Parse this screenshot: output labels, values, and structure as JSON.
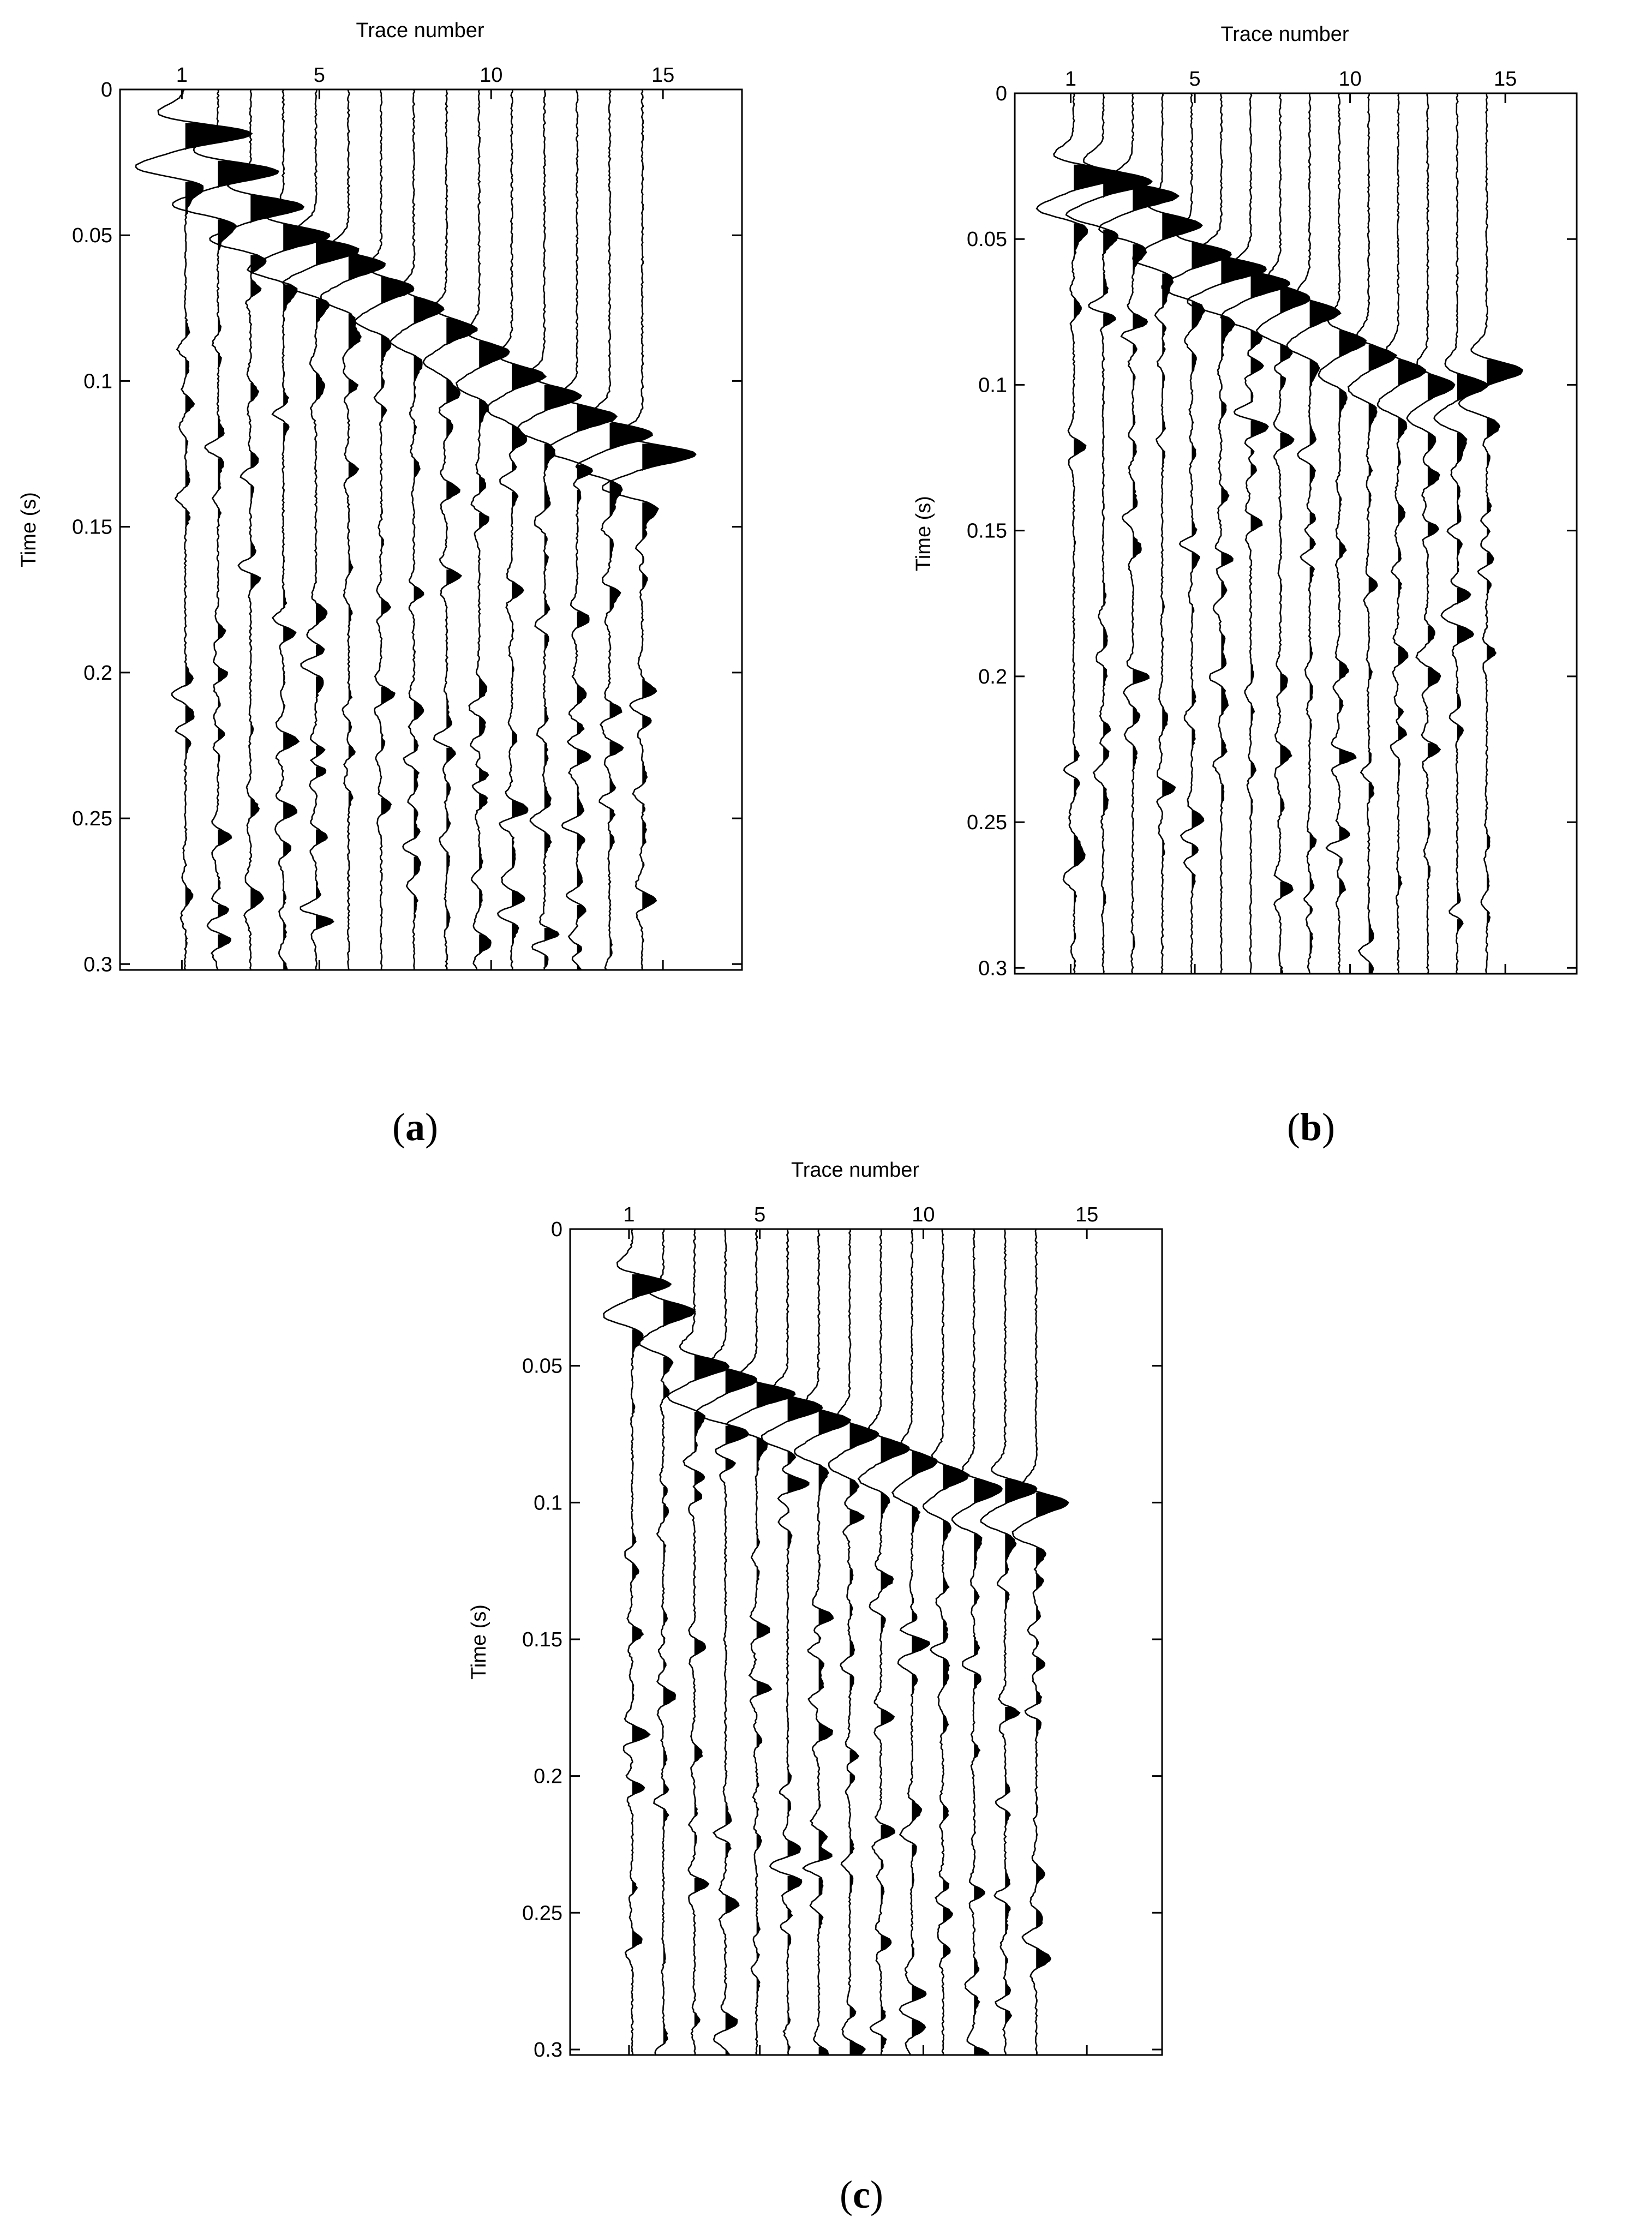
{
  "figure": {
    "panels": [
      {
        "caption_bold": "a",
        "caption": "(a)"
      },
      {
        "caption_bold": "b",
        "caption": "(b)"
      },
      {
        "caption_bold": "c",
        "caption": "(c)"
      }
    ]
  },
  "chart_data": [
    {
      "type": "wiggle",
      "panel": "a",
      "xlabel": "Trace number",
      "ylabel": "Time (s)",
      "x_ticks": [
        1,
        5,
        10,
        15
      ],
      "x_tick_labels": [
        "1",
        "5",
        "10",
        "15"
      ],
      "y_ticks": [
        0,
        0.05,
        0.1,
        0.15,
        0.2,
        0.25,
        0.3
      ],
      "y_tick_labels": [
        "0",
        "0.05",
        "0.1",
        "0.15",
        "0.2",
        "0.25",
        "0.3"
      ],
      "xlim": [
        -0.8,
        17.3
      ],
      "ylim": [
        0,
        0.302
      ],
      "x_axis_position": "top",
      "y_axis_direction": "down",
      "fill": "positive",
      "trace_numbers": [
        1,
        2,
        3,
        4,
        5,
        6,
        7,
        8,
        9,
        10,
        11,
        12,
        13,
        14,
        15
      ],
      "first_arrival_s": [
        0.015,
        0.028,
        0.04,
        0.05,
        0.055,
        0.06,
        0.068,
        0.075,
        0.082,
        0.09,
        0.098,
        0.105,
        0.112,
        0.118,
        0.125
      ],
      "peak_amplitude": [
        2.0,
        1.8,
        1.6,
        1.4,
        1.3,
        1.1,
        1.0,
        0.9,
        0.9,
        0.9,
        1.0,
        1.1,
        1.2,
        1.3,
        1.6
      ],
      "seed": 11
    },
    {
      "type": "wiggle",
      "panel": "b",
      "xlabel": "Trace number",
      "ylabel": "Time (s)",
      "x_ticks": [
        1,
        5,
        10,
        15
      ],
      "x_tick_labels": [
        "1",
        "5",
        "10",
        "15"
      ],
      "y_ticks": [
        0,
        0.05,
        0.1,
        0.15,
        0.2,
        0.25,
        0.3
      ],
      "y_tick_labels": [
        "0",
        "0.05",
        "0.1",
        "0.15",
        "0.2",
        "0.25",
        "0.3"
      ],
      "xlim": [
        -0.8,
        17.3
      ],
      "ylim": [
        0,
        0.302
      ],
      "x_axis_position": "top",
      "y_axis_direction": "down",
      "fill": "positive",
      "trace_numbers": [
        1,
        2,
        3,
        4,
        5,
        6,
        7,
        8,
        9,
        10,
        11,
        12,
        13,
        14,
        15
      ],
      "first_arrival_s": [
        0.028,
        0.03,
        0.035,
        0.045,
        0.055,
        0.06,
        0.065,
        0.07,
        0.075,
        0.085,
        0.09,
        0.095,
        0.1,
        0.1,
        0.095
      ],
      "peak_amplitude": [
        1.6,
        1.6,
        1.5,
        1.3,
        1.3,
        1.5,
        1.3,
        1.0,
        1.0,
        0.9,
        0.9,
        0.9,
        0.9,
        1.0,
        1.2
      ],
      "seed": 23
    },
    {
      "type": "wiggle",
      "panel": "c",
      "xlabel": "Trace number",
      "ylabel": "Time (s)",
      "x_ticks": [
        1,
        5,
        10,
        15
      ],
      "x_tick_labels": [
        "1",
        "5",
        "10",
        "15"
      ],
      "y_ticks": [
        0,
        0.05,
        0.1,
        0.15,
        0.2,
        0.25,
        0.3
      ],
      "y_tick_labels": [
        "0",
        "0.05",
        "0.1",
        "0.15",
        "0.2",
        "0.25",
        "0.3"
      ],
      "xlim": [
        -0.8,
        17.3
      ],
      "ylim": [
        0,
        0.302
      ],
      "x_axis_position": "top",
      "y_axis_direction": "down",
      "fill": "positive",
      "trace_numbers": [
        1,
        2,
        3,
        4,
        5,
        6,
        7,
        8,
        9,
        10,
        11,
        12,
        13,
        14
      ],
      "first_arrival_s": [
        0.02,
        0.03,
        0.05,
        0.055,
        0.06,
        0.065,
        0.07,
        0.075,
        0.08,
        0.085,
        0.09,
        0.095,
        0.095,
        0.1
      ],
      "peak_amplitude": [
        1.2,
        1.0,
        1.1,
        1.0,
        1.2,
        1.1,
        1.0,
        0.9,
        0.9,
        0.8,
        0.8,
        0.9,
        1.0,
        1.0
      ],
      "seed": 37
    }
  ]
}
